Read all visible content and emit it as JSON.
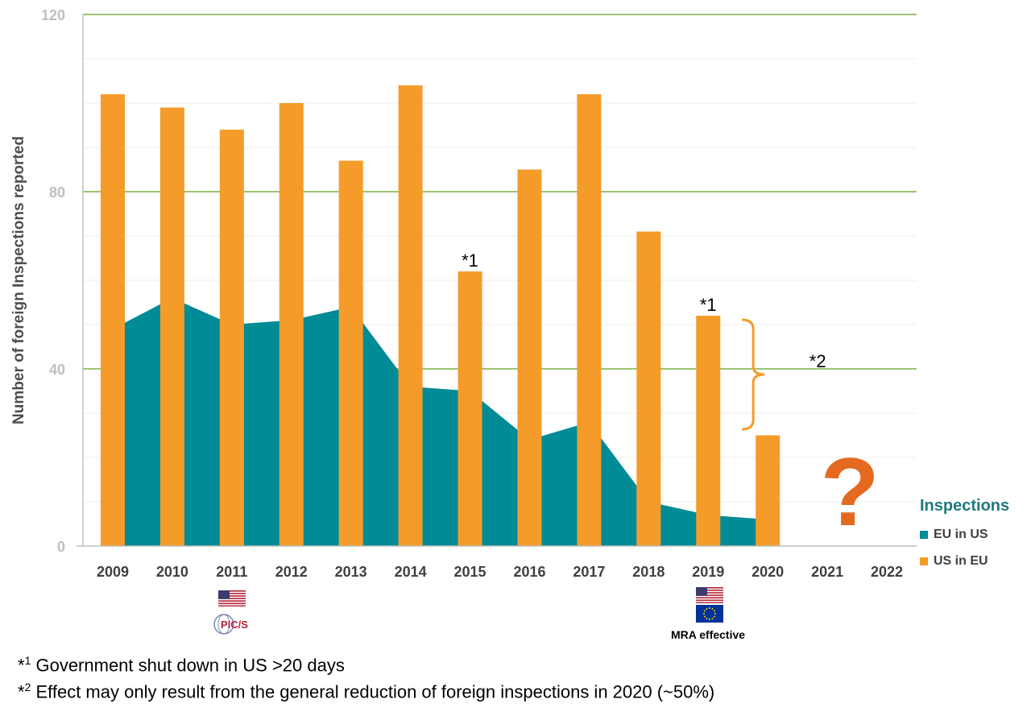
{
  "chart_data": {
    "type": "bar",
    "title": "",
    "ylabel": "Number of foreign Inspections reported",
    "xlabel": "",
    "ylim": [
      0,
      120
    ],
    "y_ticks": [
      "0",
      "40",
      "80",
      "120"
    ],
    "grid": true,
    "legend_position": "right",
    "legend_title": "Inspections",
    "categories": [
      "2009",
      "2010",
      "2011",
      "2012",
      "2013",
      "2014",
      "2015",
      "2016",
      "2017",
      "2018",
      "2019",
      "2020",
      "2021",
      "2022"
    ],
    "series": [
      {
        "name": "EU in US",
        "type": "area",
        "color": "#008b96",
        "values": [
          49,
          56,
          50,
          51,
          54,
          36,
          35,
          24,
          28,
          10,
          7,
          6,
          null,
          null
        ]
      },
      {
        "name": "US in EU",
        "type": "bar",
        "color": "#f59b2a",
        "values": [
          102,
          99,
          94,
          100,
          87,
          104,
          62,
          85,
          102,
          71,
          52,
          25,
          null,
          null
        ]
      }
    ],
    "annotations": [
      {
        "text": "*1",
        "category": "2015"
      },
      {
        "text": "*1",
        "category": "2019"
      },
      {
        "text": "*2",
        "category": "2020"
      },
      {
        "text": "?",
        "category": "2021",
        "color": "#e36a1f"
      }
    ],
    "markers": [
      {
        "category": "2011",
        "icons": [
          "us-flag-icon",
          "pics-logo-icon"
        ],
        "label": ""
      },
      {
        "category": "2019",
        "icons": [
          "us-flag-icon",
          "eu-flag-icon"
        ],
        "label": "MRA effective"
      }
    ]
  },
  "footnotes": [
    {
      "mark": "*",
      "sup": "1",
      "text": " Government shut down in US >20 days"
    },
    {
      "mark": "*",
      "sup": "2",
      "text": " Effect may only result from the general reduction of foreign inspections in 2020 (~50%)"
    }
  ],
  "logo_text": "PIC/S"
}
